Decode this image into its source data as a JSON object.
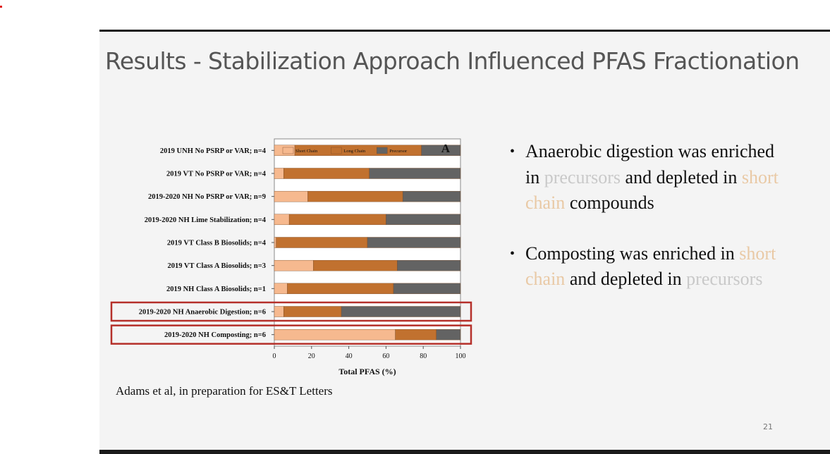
{
  "slide": {
    "title": "Results - Stabilization Approach Influenced PFAS Fractionation",
    "citation": "Adams et al, in preparation for ES&T Letters",
    "page_number": "21",
    "bullets": [
      {
        "parts": [
          {
            "text": "Anaerobic digestion was enriched in ",
            "style": "normal"
          },
          {
            "text": "precursors",
            "style": "precursor"
          },
          {
            "text": " and depleted in ",
            "style": "normal"
          },
          {
            "text": "short chain",
            "style": "short"
          },
          {
            "text": " compounds",
            "style": "normal"
          }
        ]
      },
      {
        "parts": [
          {
            "text": "Composting was enriched in ",
            "style": "normal"
          },
          {
            "text": "short chain",
            "style": "short"
          },
          {
            "text": " and depleted in ",
            "style": "normal"
          },
          {
            "text": "precursors",
            "style": "precursor"
          }
        ]
      }
    ]
  },
  "chart_data": {
    "type": "bar",
    "orientation": "horizontal",
    "stacked": true,
    "panel_label": "A",
    "xlabel": "Total PFAS (%)",
    "xlim": [
      0,
      100
    ],
    "xticks": [
      "0",
      "20",
      "40",
      "60",
      "80",
      "100"
    ],
    "categories": [
      "2019 UNH No PSRP or VAR; n=4",
      "2019 VT No PSRP or VAR; n=4",
      "2019-2020 NH No PSRP or VAR; n=9",
      "2019-2020 NH Lime Stabilization; n=4",
      "2019 VT Class B Biosolids; n=4",
      "2019 VT Class A Biosolids; n=3",
      "2019 NH Class A Biosolids; n=1",
      "2019-2020 NH Anaerobic Digestion; n=6",
      "2019-2020 NH Composting; n=6"
    ],
    "highlighted": [
      "2019-2020 NH Anaerobic Digestion; n=6",
      "2019-2020 NH Composting; n=6"
    ],
    "legend_position": "top-left",
    "series": [
      {
        "name": "Short Chain",
        "color": "#f6b98f",
        "values": [
          11,
          5,
          18,
          8,
          1,
          21,
          7,
          5,
          65
        ]
      },
      {
        "name": "Long Chain",
        "color": "#c1712f",
        "values": [
          68,
          46,
          51,
          52,
          49,
          45,
          57,
          31,
          22
        ]
      },
      {
        "name": "Precursor",
        "color": "#636363",
        "values": [
          21,
          49,
          31,
          40,
          50,
          34,
          36,
          64,
          13
        ]
      }
    ],
    "highlight_color": "#b5302a"
  }
}
